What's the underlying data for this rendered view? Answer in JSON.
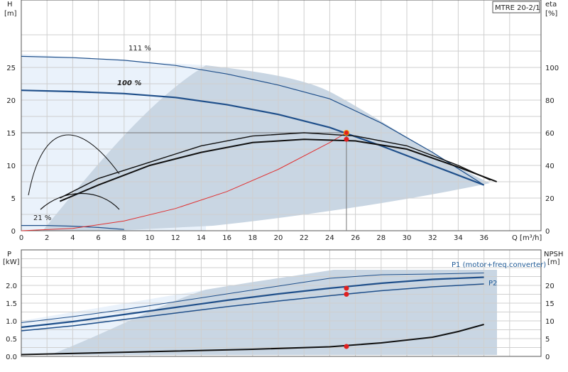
{
  "pump_label": "MTRE 20-2/1",
  "top_chart": {
    "y_left_label": [
      "H",
      "[m]"
    ],
    "y_right_label": [
      "eta",
      "[%]"
    ],
    "x_unit": "Q [m³/h]",
    "x_ticks": [
      "0",
      "2",
      "4",
      "6",
      "8",
      "10",
      "12",
      "14",
      "16",
      "18",
      "20",
      "22",
      "24",
      "26",
      "28",
      "30",
      "32",
      "34",
      "36"
    ],
    "y_left_ticks": [
      "0",
      "5",
      "10",
      "15",
      "20",
      "25"
    ],
    "y_right_ticks": [
      "0",
      "20",
      "40",
      "60",
      "80",
      "100"
    ],
    "annotations": [
      "111 %",
      "100 %",
      "21 %"
    ]
  },
  "bottom_chart": {
    "y_left_label": [
      "P",
      "[kW]"
    ],
    "y_right_label": [
      "NPSH",
      "[m]"
    ],
    "y_left_ticks": [
      "0.0",
      "0.5",
      "1.0",
      "1.5",
      "2.0"
    ],
    "y_right_ticks": [
      "0",
      "5",
      "10",
      "15",
      "20"
    ],
    "series_labels": [
      "P1 (motor+freq.converter)",
      "P2"
    ]
  },
  "chart_data": [
    {
      "type": "line",
      "title": "",
      "xlabel": "Q [m³/h]",
      "ylabel": "H [m]",
      "y2label": "eta [%]",
      "xlim": [
        0,
        40
      ],
      "ylim": [
        0,
        30
      ],
      "y2lim": [
        0,
        125
      ],
      "duty_point": {
        "q": 25.3,
        "h": 15.0,
        "eta": 56
      },
      "series": [
        {
          "name": "111 %",
          "axis": "H",
          "x": [
            0,
            4,
            8,
            12,
            16,
            20,
            24,
            28,
            32,
            36
          ],
          "y": [
            26.7,
            26.5,
            26.1,
            25.3,
            24.0,
            22.3,
            20.2,
            16.5,
            12.0,
            7.0
          ]
        },
        {
          "name": "100 %",
          "axis": "H",
          "x": [
            0,
            4,
            8,
            12,
            16,
            20,
            24,
            28,
            32,
            36
          ],
          "y": [
            21.5,
            21.3,
            21.0,
            20.4,
            19.3,
            17.8,
            15.8,
            13.0,
            10.0,
            7.0
          ]
        },
        {
          "name": "21 %",
          "axis": "H",
          "x": [
            0,
            2,
            4,
            6,
            8
          ],
          "y": [
            0.8,
            0.8,
            0.7,
            0.5,
            0.2
          ]
        },
        {
          "name": "",
          "axis": "H",
          "x": [
            0,
            4,
            8,
            12,
            16,
            20,
            24,
            25.3
          ],
          "y": [
            0,
            0.35,
            1.5,
            3.4,
            6.0,
            9.4,
            13.5,
            15.0
          ]
        },
        {
          "name": "",
          "axis": "eta",
          "x": [
            3,
            6,
            10,
            14,
            18,
            22,
            26,
            30,
            34,
            36.5
          ],
          "y": [
            20,
            32,
            42,
            52,
            58,
            60,
            58,
            52,
            40,
            31
          ]
        },
        {
          "name": "",
          "axis": "eta",
          "x": [
            3,
            6,
            10,
            14,
            18,
            22,
            26,
            30,
            34,
            37
          ],
          "y": [
            18,
            28,
            40,
            48,
            54,
            56,
            55,
            50,
            39,
            30
          ]
        }
      ]
    },
    {
      "type": "line",
      "title": "",
      "xlabel": "Q [m³/h]",
      "ylabel": "P [kW]",
      "y2label": "NPSH [m]",
      "xlim": [
        0,
        40
      ],
      "ylim": [
        0,
        2.5
      ],
      "y2lim": [
        0,
        25
      ],
      "series": [
        {
          "name": "P1 (motor+freq.converter)",
          "axis": "P",
          "x": [
            0,
            4,
            8,
            12,
            16,
            20,
            24,
            28,
            32,
            36
          ],
          "y": [
            0.82,
            0.98,
            1.18,
            1.38,
            1.58,
            1.76,
            1.92,
            2.06,
            2.17,
            2.23
          ]
        },
        {
          "name": "P2",
          "axis": "P",
          "x": [
            0,
            4,
            8,
            12,
            16,
            20,
            24,
            28,
            32,
            36
          ],
          "y": [
            0.72,
            0.86,
            1.04,
            1.22,
            1.4,
            1.56,
            1.71,
            1.85,
            1.96,
            2.04
          ]
        },
        {
          "name": "",
          "axis": "P",
          "x": [
            0,
            4,
            8,
            12,
            16,
            20,
            24,
            28,
            32,
            36
          ],
          "y": [
            0.95,
            1.12,
            1.32,
            1.54,
            1.76,
            1.98,
            2.2,
            2.3,
            2.32,
            2.35
          ]
        },
        {
          "name": "",
          "axis": "NPSH",
          "x": [
            0,
            6,
            12,
            18,
            24,
            28,
            32,
            34,
            36
          ],
          "y": [
            0.5,
            1.0,
            1.5,
            2.0,
            2.7,
            3.8,
            5.4,
            7.0,
            9.0
          ]
        }
      ],
      "duty_points": [
        {
          "q": 25.3,
          "p": 1.92
        },
        {
          "q": 25.3,
          "p": 1.75
        },
        {
          "q": 25.3,
          "npsh": 2.8
        }
      ]
    }
  ]
}
